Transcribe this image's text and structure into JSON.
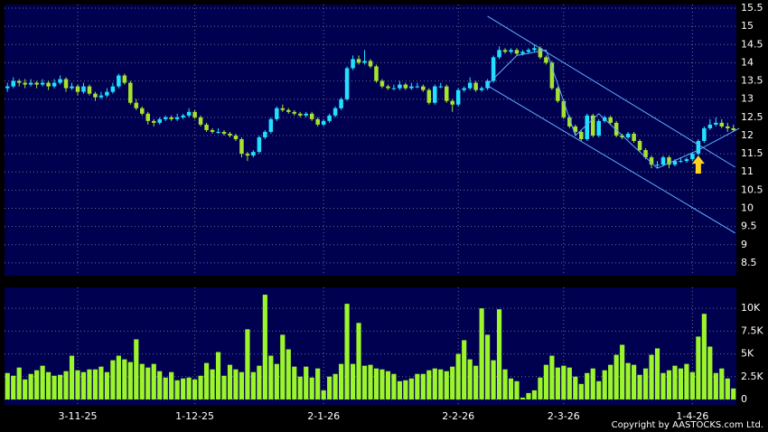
{
  "chart_data": {
    "type": "candlestick",
    "xlim": [
      -0.5,
      124.5
    ],
    "xticks": [
      {
        "value": 12,
        "label": "3-11-25"
      },
      {
        "value": 32,
        "label": "1-12-25"
      },
      {
        "value": 54,
        "label": "2-1-26"
      },
      {
        "value": 77,
        "label": "2-2-26"
      },
      {
        "value": 95,
        "label": "2-3-26"
      },
      {
        "value": 117,
        "label": "1-4-26"
      }
    ],
    "ylim": [
      8.15,
      15.6
    ],
    "yticks": [
      8.5,
      9,
      9.5,
      10,
      10.5,
      11,
      11.5,
      12,
      12.5,
      13,
      13.5,
      14,
      14.5,
      15,
      15.5
    ],
    "up_color": "#22e0ff",
    "down_color": "#a6e22e",
    "volume_color": "#9cf52a",
    "grid": true,
    "candles": [
      [
        13.3,
        13.45,
        13.2,
        13.35
      ],
      [
        13.35,
        13.6,
        13.3,
        13.5
      ],
      [
        13.5,
        13.55,
        13.35,
        13.45
      ],
      [
        13.45,
        13.55,
        13.3,
        13.4
      ],
      [
        13.4,
        13.55,
        13.35,
        13.45
      ],
      [
        13.45,
        13.5,
        13.3,
        13.4
      ],
      [
        13.4,
        13.55,
        13.35,
        13.45
      ],
      [
        13.45,
        13.5,
        13.25,
        13.35
      ],
      [
        13.35,
        13.55,
        13.3,
        13.45
      ],
      [
        13.45,
        13.65,
        13.4,
        13.55
      ],
      [
        13.55,
        13.6,
        13.2,
        13.3
      ],
      [
        13.3,
        13.45,
        13.25,
        13.35
      ],
      [
        13.35,
        13.4,
        13.1,
        13.2
      ],
      [
        13.2,
        13.45,
        13.15,
        13.35
      ],
      [
        13.35,
        13.4,
        13.1,
        13.15
      ],
      [
        13.15,
        13.2,
        12.95,
        13.05
      ],
      [
        13.05,
        13.2,
        13.0,
        13.1
      ],
      [
        13.1,
        13.3,
        13.05,
        13.2
      ],
      [
        13.2,
        13.45,
        13.15,
        13.35
      ],
      [
        13.35,
        13.7,
        13.3,
        13.65
      ],
      [
        13.65,
        13.7,
        13.4,
        13.45
      ],
      [
        13.45,
        13.5,
        12.85,
        12.9
      ],
      [
        12.9,
        13.0,
        12.7,
        12.75
      ],
      [
        12.75,
        12.8,
        12.55,
        12.6
      ],
      [
        12.6,
        12.65,
        12.3,
        12.4
      ],
      [
        12.4,
        12.45,
        12.25,
        12.35
      ],
      [
        12.35,
        12.5,
        12.3,
        12.45
      ],
      [
        12.45,
        12.55,
        12.4,
        12.5
      ],
      [
        12.5,
        12.55,
        12.4,
        12.45
      ],
      [
        12.45,
        12.6,
        12.4,
        12.5
      ],
      [
        12.5,
        12.6,
        12.45,
        12.55
      ],
      [
        12.55,
        12.75,
        12.5,
        12.65
      ],
      [
        12.65,
        12.7,
        12.45,
        12.5
      ],
      [
        12.5,
        12.55,
        12.25,
        12.3
      ],
      [
        12.3,
        12.35,
        12.1,
        12.15
      ],
      [
        12.15,
        12.2,
        12.05,
        12.1
      ],
      [
        12.1,
        12.2,
        12.05,
        12.1
      ],
      [
        12.1,
        12.15,
        12.0,
        12.05
      ],
      [
        12.05,
        12.1,
        11.95,
        12.0
      ],
      [
        12.0,
        12.05,
        11.85,
        11.9
      ],
      [
        11.9,
        11.95,
        11.4,
        11.5
      ],
      [
        11.5,
        11.55,
        11.3,
        11.45
      ],
      [
        11.45,
        11.6,
        11.4,
        11.55
      ],
      [
        11.55,
        12.0,
        11.5,
        11.95
      ],
      [
        11.95,
        12.15,
        11.9,
        12.1
      ],
      [
        12.1,
        12.5,
        12.05,
        12.45
      ],
      [
        12.45,
        12.8,
        12.4,
        12.75
      ],
      [
        12.75,
        12.85,
        12.65,
        12.7
      ],
      [
        12.7,
        12.75,
        12.6,
        12.65
      ],
      [
        12.65,
        12.7,
        12.55,
        12.6
      ],
      [
        12.6,
        12.65,
        12.5,
        12.55
      ],
      [
        12.55,
        12.65,
        12.5,
        12.6
      ],
      [
        12.6,
        12.65,
        12.4,
        12.45
      ],
      [
        12.45,
        12.5,
        12.25,
        12.3
      ],
      [
        12.3,
        12.45,
        12.25,
        12.4
      ],
      [
        12.4,
        12.6,
        12.35,
        12.55
      ],
      [
        12.55,
        12.8,
        12.5,
        12.75
      ],
      [
        12.75,
        13.05,
        12.7,
        13.0
      ],
      [
        13.0,
        13.9,
        12.95,
        13.85
      ],
      [
        13.85,
        14.2,
        13.8,
        14.1
      ],
      [
        14.1,
        14.2,
        13.95,
        14.0
      ],
      [
        14.0,
        14.35,
        13.95,
        14.05
      ],
      [
        14.05,
        14.1,
        13.85,
        13.9
      ],
      [
        13.9,
        13.95,
        13.45,
        13.5
      ],
      [
        13.5,
        13.55,
        13.3,
        13.35
      ],
      [
        13.35,
        13.4,
        13.25,
        13.3
      ],
      [
        13.3,
        13.4,
        13.25,
        13.3
      ],
      [
        13.3,
        13.5,
        13.25,
        13.4
      ],
      [
        13.4,
        13.45,
        13.25,
        13.3
      ],
      [
        13.3,
        13.45,
        13.25,
        13.35
      ],
      [
        13.35,
        13.45,
        13.3,
        13.35
      ],
      [
        13.35,
        13.4,
        13.2,
        13.25
      ],
      [
        13.25,
        13.3,
        12.85,
        12.9
      ],
      [
        12.9,
        13.4,
        12.85,
        13.35
      ],
      [
        13.35,
        13.45,
        13.3,
        13.35
      ],
      [
        13.35,
        13.4,
        12.9,
        12.95
      ],
      [
        12.95,
        13.0,
        12.65,
        12.85
      ],
      [
        12.85,
        13.3,
        12.8,
        13.25
      ],
      [
        13.25,
        13.35,
        13.2,
        13.3
      ],
      [
        13.3,
        13.6,
        13.25,
        13.45
      ],
      [
        13.45,
        13.5,
        13.2,
        13.25
      ],
      [
        13.25,
        13.35,
        13.2,
        13.3
      ],
      [
        13.3,
        13.55,
        13.25,
        13.5
      ],
      [
        13.5,
        14.2,
        13.45,
        14.15
      ],
      [
        14.15,
        14.45,
        14.1,
        14.35
      ],
      [
        14.35,
        14.4,
        14.25,
        14.3
      ],
      [
        14.3,
        14.4,
        14.25,
        14.35
      ],
      [
        14.35,
        14.4,
        14.2,
        14.25
      ],
      [
        14.25,
        14.35,
        14.2,
        14.3
      ],
      [
        14.3,
        14.4,
        14.25,
        14.35
      ],
      [
        14.35,
        14.5,
        14.3,
        14.4
      ],
      [
        14.4,
        14.45,
        14.1,
        14.15
      ],
      [
        14.15,
        14.2,
        13.95,
        14.0
      ],
      [
        14.0,
        14.05,
        13.25,
        13.3
      ],
      [
        13.3,
        13.35,
        12.9,
        12.95
      ],
      [
        12.95,
        13.0,
        12.45,
        12.5
      ],
      [
        12.5,
        12.55,
        12.2,
        12.25
      ],
      [
        12.25,
        12.3,
        12.0,
        12.1
      ],
      [
        12.1,
        12.15,
        11.85,
        11.9
      ],
      [
        11.9,
        12.6,
        11.85,
        12.55
      ],
      [
        12.55,
        12.6,
        11.95,
        12.0
      ],
      [
        12.0,
        12.45,
        11.95,
        12.4
      ],
      [
        12.4,
        12.55,
        12.35,
        12.5
      ],
      [
        12.5,
        12.55,
        12.3,
        12.35
      ],
      [
        12.35,
        12.4,
        11.95,
        12.0
      ],
      [
        12.0,
        12.05,
        11.9,
        11.95
      ],
      [
        11.95,
        12.1,
        11.9,
        12.05
      ],
      [
        12.05,
        12.1,
        11.8,
        11.85
      ],
      [
        11.85,
        11.9,
        11.55,
        11.6
      ],
      [
        11.6,
        11.65,
        11.35,
        11.4
      ],
      [
        11.4,
        11.45,
        11.1,
        11.2
      ],
      [
        11.2,
        11.3,
        11.1,
        11.2
      ],
      [
        11.2,
        11.45,
        11.15,
        11.4
      ],
      [
        11.4,
        11.45,
        11.1,
        11.2
      ],
      [
        11.2,
        11.35,
        11.15,
        11.3
      ],
      [
        11.3,
        11.4,
        11.25,
        11.3
      ],
      [
        11.3,
        11.4,
        11.25,
        11.35
      ],
      [
        11.35,
        11.55,
        11.3,
        11.5
      ],
      [
        11.5,
        11.9,
        11.45,
        11.85
      ],
      [
        11.85,
        12.25,
        11.8,
        12.2
      ],
      [
        12.2,
        12.45,
        12.15,
        12.3
      ],
      [
        12.3,
        12.5,
        12.25,
        12.35
      ],
      [
        12.35,
        12.45,
        12.2,
        12.25
      ],
      [
        12.25,
        12.35,
        12.1,
        12.2
      ],
      [
        12.2,
        12.3,
        12.1,
        12.15
      ]
    ],
    "trendline_color": "#5fb0ff",
    "trendlines": [
      {
        "x": [
          82,
          124.3
        ],
        "y": [
          15.28,
          11.13
        ]
      },
      {
        "x": [
          82,
          124.3
        ],
        "y": [
          13.37,
          9.32
        ]
      },
      {
        "x": [
          82,
          87,
          92,
          97,
          101,
          111,
          118,
          125
        ],
        "y": [
          13.4,
          14.2,
          14.35,
          12.0,
          12.6,
          11.1,
          11.6,
          12.2
        ]
      }
    ],
    "arrow": {
      "x": 118,
      "y": 11.45,
      "color": "#ffd21f"
    },
    "volume": {
      "ylim": [
        -600,
        12300
      ],
      "yticks": [
        0,
        {
          "value": 2500,
          "label": "2.5K"
        },
        {
          "value": 5000,
          "label": "5K"
        },
        {
          "value": 7500,
          "label": "7.5K"
        },
        {
          "value": 10000,
          "label": "10K"
        }
      ],
      "values": [
        2900,
        2600,
        3500,
        2200,
        2800,
        3200,
        3700,
        3000,
        2600,
        2700,
        3100,
        4800,
        3200,
        3000,
        3300,
        3300,
        3600,
        3000,
        4300,
        4800,
        4400,
        4100,
        6600,
        3900,
        3500,
        3900,
        3100,
        2400,
        3000,
        2100,
        2300,
        2400,
        2200,
        2600,
        4000,
        3300,
        5200,
        2600,
        3800,
        3300,
        3000,
        7700,
        3000,
        3700,
        11500,
        4800,
        3900,
        7100,
        5500,
        3600,
        2500,
        3600,
        2400,
        3400,
        1000,
        2500,
        2800,
        3900,
        10500,
        3900,
        8400,
        3700,
        3800,
        3400,
        3300,
        3100,
        2800,
        2000,
        2100,
        2300,
        2800,
        2800,
        3200,
        3400,
        3300,
        3100,
        3600,
        5000,
        6500,
        4400,
        3700,
        10000,
        7100,
        4300,
        9900,
        3300,
        2300,
        2000,
        200,
        700,
        1000,
        2400,
        3800,
        4800,
        3500,
        3700,
        3500,
        2500,
        1700,
        2900,
        3400,
        2000,
        3200,
        3800,
        4900,
        6000,
        4000,
        3800,
        2700,
        3400,
        4900,
        5600,
        2900,
        3200,
        3700,
        3400,
        3900,
        3000,
        6900,
        9400,
        5800,
        2900,
        3400,
        2300,
        1200
      ]
    },
    "copyright": "Copyright by AASTOCKS.com Ltd."
  }
}
